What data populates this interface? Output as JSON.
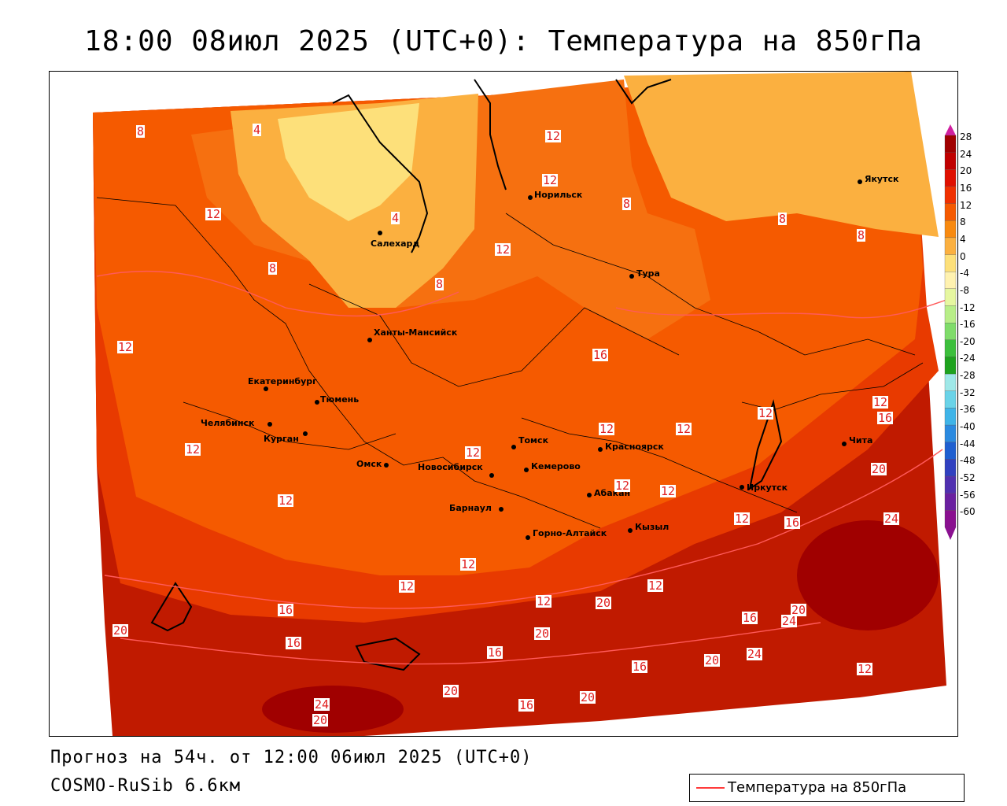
{
  "title": "18:00 08июл 2025 (UTC+0): Температура на 850гПа",
  "footer": {
    "forecast": "Прогноз на 54ч. от 12:00 06июл 2025 (UTC+0)",
    "model": "COSMO-RuSib 6.6км"
  },
  "legend": {
    "label": "Температура на 850гПа",
    "line_color": "#ff3b3b"
  },
  "colorbar": {
    "ticks": [
      "28",
      "24",
      "20",
      "16",
      "12",
      "8",
      "4",
      "0",
      "-4",
      "-8",
      "-12",
      "-16",
      "-20",
      "-24",
      "-28",
      "-32",
      "-36",
      "-40",
      "-44",
      "-48",
      "-52",
      "-56",
      "-60"
    ],
    "colors": [
      "#a00000",
      "#c00000",
      "#e01000",
      "#f03000",
      "#f55a00",
      "#f88a10",
      "#fbb040",
      "#fde07a",
      "#fff2b0",
      "#e6f7a0",
      "#b8ee88",
      "#7fdc6a",
      "#3cbf3c",
      "#1ea21e",
      "#9fe8e8",
      "#6ad3e8",
      "#3fb4e8",
      "#2b8ae0",
      "#1f5fd0",
      "#3040c0",
      "#5030b0",
      "#6a20a0",
      "#8a1090"
    ]
  },
  "cities": [
    {
      "name": "Норильск"
    },
    {
      "name": "Якутск"
    },
    {
      "name": "Салехард"
    },
    {
      "name": "Тура"
    },
    {
      "name": "Ханты-Мансийск"
    },
    {
      "name": "Екатеринбург"
    },
    {
      "name": "Тюмень"
    },
    {
      "name": "Челябинск"
    },
    {
      "name": "Курган"
    },
    {
      "name": "Томск"
    },
    {
      "name": "Красноярск"
    },
    {
      "name": "Омск"
    },
    {
      "name": "Новосибирск"
    },
    {
      "name": "Кемерово"
    },
    {
      "name": "Абакан"
    },
    {
      "name": "Иркутск"
    },
    {
      "name": "Чита"
    },
    {
      "name": "Барнаул"
    },
    {
      "name": "Горно-Алтайск"
    },
    {
      "name": "Кызыл"
    }
  ],
  "contour_labels": [
    "8",
    "4",
    "12",
    "12",
    "12",
    "8",
    "8",
    "8",
    "12",
    "4",
    "8",
    "8",
    "12",
    "16",
    "12",
    "12",
    "12",
    "12",
    "12",
    "16",
    "12",
    "12",
    "12",
    "12",
    "12",
    "16",
    "20",
    "24",
    "16",
    "12",
    "12",
    "20",
    "12",
    "16",
    "20",
    "24",
    "16",
    "20",
    "20",
    "24",
    "20",
    "16",
    "16",
    "20",
    "16",
    "20",
    "24",
    "20",
    "12",
    "12"
  ]
}
